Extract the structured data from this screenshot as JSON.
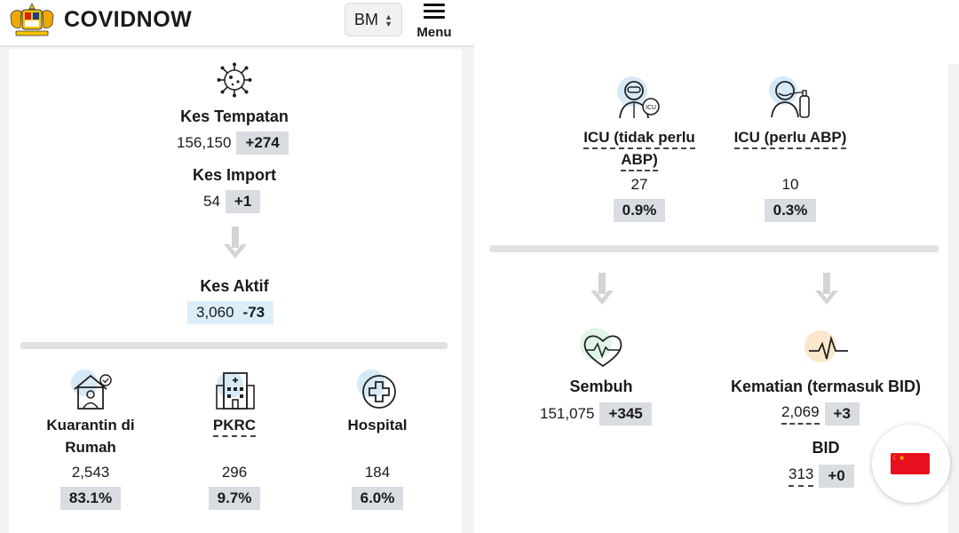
{
  "header": {
    "brand": "COVIDNOW",
    "language": "BM",
    "menu_label": "Menu"
  },
  "left": {
    "kes_tempatan": {
      "label": "Kes Tempatan",
      "value": "156,150",
      "delta": "+274"
    },
    "kes_import": {
      "label": "Kes Import",
      "value": "54",
      "delta": "+1"
    },
    "kes_aktif": {
      "label": "Kes Aktif",
      "value": "3,060",
      "delta": "-73"
    },
    "kuarantin": {
      "label_line1": "Kuarantin di",
      "label_line2": "Rumah",
      "value": "2,543",
      "percent": "83.1%"
    },
    "pkrc": {
      "label": "PKRC",
      "value": "296",
      "percent": "9.7%"
    },
    "hospital": {
      "label": "Hospital",
      "value": "184",
      "percent": "6.0%"
    }
  },
  "right": {
    "icu_tidak": {
      "label_line1": "ICU (tidak perlu",
      "label_line2": "ABP)",
      "value": "27",
      "percent": "0.9%"
    },
    "icu_perlu": {
      "label": "ICU (perlu ABP)",
      "value": "10",
      "percent": "0.3%"
    },
    "sembuh": {
      "label": "Sembuh",
      "value": "151,075",
      "delta": "+345"
    },
    "kematian": {
      "label": "Kematian (termasuk BID)",
      "value": "2,069",
      "delta": "+3"
    },
    "bid": {
      "label": "BID",
      "value": "313",
      "delta": "+0"
    }
  },
  "colors": {
    "chip": "#d9dde2",
    "aktif_chip": "#dbeefa",
    "icon_blue": "#d6e9f7",
    "icon_green": "#dff5e6",
    "icon_orange": "#fbe7cc"
  },
  "icons": [
    "virus-icon",
    "arrow-down-icon",
    "house-quarantine-icon",
    "building-icon",
    "hospital-cross-icon",
    "doctor-icon",
    "patient-oxygen-icon",
    "heart-pulse-icon",
    "pulse-line-icon",
    "flag-icon"
  ]
}
